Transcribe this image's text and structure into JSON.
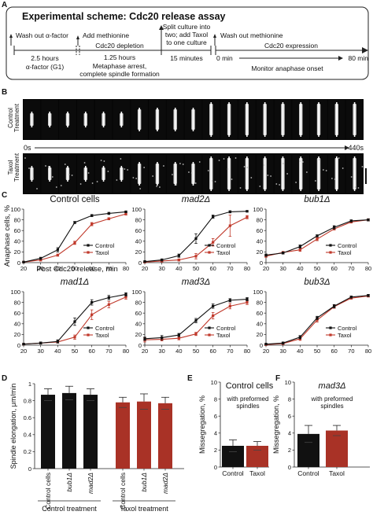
{
  "panel_labels": {
    "A": "A",
    "B": "B",
    "C": "C",
    "D": "D",
    "E": "E",
    "F": "F"
  },
  "scheme": {
    "title": "Experimental scheme: Cdc20 release assay",
    "steps": [
      {
        "top": "Wash out α-factor",
        "mid": "2.5 hours",
        "bot": "α-factor (G1)"
      },
      {
        "top": "Add methionine",
        "mid2": "Cdc20 depletion",
        "mid": "1.25 hours",
        "bot": "Metaphase arrest,",
        "bot2": "complete spindle formation"
      },
      {
        "top": "Split culture into",
        "top2": "two; add Taxol",
        "top3": "to one culture",
        "mid": "15 minutes"
      },
      {
        "top": "Wash out methionine",
        "mid": "Cdc20 expression",
        "start": "0 min",
        "end": "80 min",
        "bot": "Monitor anaphase onset"
      }
    ]
  },
  "timelapse": {
    "row1_label_a": "Control",
    "row1_label_b": "Treatment",
    "row2_label_a": "Taxol",
    "row2_label_b": "Treatment",
    "t_start": "0s",
    "t_end": "440s",
    "frames": [
      {
        "type": "short"
      },
      {
        "type": "short"
      },
      {
        "type": "short"
      },
      {
        "type": "short"
      },
      {
        "type": "short"
      },
      {
        "type": "short"
      },
      {
        "type": "mid"
      },
      {
        "type": "mid"
      },
      {
        "type": "mid"
      },
      {
        "type": "mid"
      },
      {
        "type": "long"
      },
      {
        "type": "long"
      },
      {
        "type": "long"
      },
      {
        "type": "long"
      },
      {
        "type": "long"
      },
      {
        "type": "long"
      },
      {
        "type": "long"
      },
      {
        "type": "long"
      },
      {
        "type": "long"
      }
    ]
  },
  "line_axis": {
    "ylabel": "Anaphase cells, %",
    "xlabel": "Post Cdc20 release, min",
    "xticks": [
      20,
      30,
      40,
      50,
      60,
      70,
      80
    ],
    "yticks": [
      0,
      20,
      40,
      60,
      80,
      100
    ]
  },
  "chart_data": [
    {
      "type": "line",
      "title": "Control cells",
      "italic": false,
      "x": [
        20,
        30,
        40,
        50,
        60,
        70,
        80
      ],
      "ylim": [
        0,
        100
      ],
      "series": [
        {
          "name": "Control",
          "color": "#111111",
          "values": [
            1,
            8,
            24,
            75,
            88,
            92,
            95
          ],
          "err": [
            1,
            2,
            4,
            2,
            2,
            2,
            1
          ]
        },
        {
          "name": "Taxol",
          "color": "#c0392b",
          "values": [
            1,
            5,
            14,
            37,
            72,
            82,
            91
          ],
          "err": [
            1,
            2,
            2,
            3,
            3,
            2,
            2
          ]
        }
      ],
      "legend": "bottom-right"
    },
    {
      "type": "line",
      "title": "mad2Δ",
      "italic": true,
      "x": [
        20,
        30,
        40,
        50,
        60,
        70,
        80
      ],
      "ylim": [
        0,
        100
      ],
      "series": [
        {
          "name": "Control",
          "color": "#111111",
          "values": [
            2,
            5,
            13,
            45,
            86,
            95,
            96
          ],
          "err": [
            1,
            2,
            3,
            9,
            3,
            2,
            1
          ]
        },
        {
          "name": "Taxol",
          "color": "#c0392b",
          "values": [
            1,
            3,
            5,
            12,
            38,
            69,
            85
          ],
          "err": [
            1,
            2,
            2,
            5,
            7,
            20,
            3
          ]
        }
      ],
      "legend": "bottom-right"
    },
    {
      "type": "line",
      "title": "bub1Δ",
      "italic": true,
      "x": [
        20,
        30,
        40,
        50,
        60,
        70,
        80
      ],
      "ylim": [
        0,
        100
      ],
      "series": [
        {
          "name": "Control",
          "color": "#111111",
          "values": [
            14,
            18,
            30,
            50,
            66,
            78,
            80
          ],
          "err": [
            2,
            2,
            3,
            2,
            3,
            2,
            2
          ]
        },
        {
          "name": "Taxol",
          "color": "#c0392b",
          "values": [
            12,
            19,
            24,
            44,
            63,
            76,
            80
          ],
          "err": [
            2,
            2,
            3,
            3,
            2,
            2,
            2
          ]
        }
      ],
      "legend": "bottom-right"
    },
    {
      "type": "line",
      "title": "mad1Δ",
      "italic": true,
      "x": [
        20,
        30,
        40,
        50,
        60,
        70,
        80
      ],
      "ylim": [
        0,
        100
      ],
      "series": [
        {
          "name": "Control",
          "color": "#111111",
          "values": [
            2,
            4,
            7,
            44,
            80,
            89,
            95
          ],
          "err": [
            1,
            2,
            3,
            7,
            5,
            4,
            3
          ]
        },
        {
          "name": "Taxol",
          "color": "#c0392b",
          "values": [
            2,
            4,
            6,
            15,
            57,
            76,
            90
          ],
          "err": [
            1,
            2,
            2,
            4,
            9,
            6,
            4
          ]
        }
      ],
      "legend": "bottom-right"
    },
    {
      "type": "line",
      "title": "mad3Δ",
      "italic": true,
      "x": [
        20,
        30,
        40,
        50,
        60,
        70,
        80
      ],
      "ylim": [
        0,
        100
      ],
      "series": [
        {
          "name": "Control",
          "color": "#111111",
          "values": [
            12,
            14,
            19,
            46,
            73,
            84,
            86
          ],
          "err": [
            3,
            4,
            3,
            4,
            4,
            3,
            3
          ]
        },
        {
          "name": "Taxol",
          "color": "#c0392b",
          "values": [
            10,
            11,
            13,
            21,
            55,
            73,
            80
          ],
          "err": [
            4,
            3,
            3,
            3,
            6,
            5,
            4
          ]
        }
      ],
      "legend": "bottom-right"
    },
    {
      "type": "line",
      "title": "bub3Δ",
      "italic": true,
      "x": [
        20,
        30,
        40,
        50,
        60,
        70,
        80
      ],
      "ylim": [
        0,
        100
      ],
      "series": [
        {
          "name": "Control",
          "color": "#111111",
          "values": [
            2,
            4,
            15,
            51,
            73,
            90,
            93
          ],
          "err": [
            1,
            2,
            3,
            3,
            3,
            2,
            2
          ]
        },
        {
          "name": "Taxol",
          "color": "#c0392b",
          "values": [
            1,
            3,
            12,
            47,
            72,
            88,
            92
          ],
          "err": [
            1,
            2,
            3,
            4,
            3,
            2,
            2
          ]
        }
      ],
      "legend": "bottom-right"
    },
    {
      "type": "bar",
      "title": "",
      "ylabel": "Spindle elongation, μm/min",
      "ylim": [
        0,
        1.0
      ],
      "yticks": [
        0,
        0.2,
        0.4,
        0.6,
        0.8,
        1.0
      ],
      "categories": [
        "Control cells",
        "bub1Δ",
        "mad2Δ",
        "Control cells",
        "bub1Δ",
        "mad2Δ"
      ],
      "italic_cats": [
        false,
        true,
        true,
        false,
        true,
        true
      ],
      "values": [
        0.87,
        0.89,
        0.87,
        0.78,
        0.79,
        0.77
      ],
      "err": [
        0.07,
        0.08,
        0.07,
        0.06,
        0.09,
        0.07
      ],
      "colors": [
        "#111111",
        "#111111",
        "#111111",
        "#a93226",
        "#a93226",
        "#a93226"
      ],
      "groups": [
        {
          "label": "Control treatment",
          "from": 0,
          "to": 2
        },
        {
          "label": "Taxol treatment",
          "from": 3,
          "to": 5
        }
      ]
    },
    {
      "type": "bar",
      "title": "Control cells",
      "italic": false,
      "subtitle_a": "with preformed",
      "subtitle_b": "spindles",
      "ylabel": "Missegregation, %",
      "ylim": [
        0,
        10
      ],
      "yticks": [
        0,
        2,
        4,
        6,
        8,
        10
      ],
      "categories": [
        "Control",
        "Taxol"
      ],
      "values": [
        2.5,
        2.5
      ],
      "err": [
        0.7,
        0.5
      ],
      "colors": [
        "#111111",
        "#a93226"
      ]
    },
    {
      "type": "bar",
      "title": "mad3Δ",
      "italic": true,
      "subtitle_a": "with preformed",
      "subtitle_b": "spindles",
      "ylabel": "Missegregation, %",
      "ylim": [
        0,
        10
      ],
      "yticks": [
        0,
        2,
        4,
        6,
        8,
        10
      ],
      "categories": [
        "Control",
        "Taxol"
      ],
      "values": [
        3.9,
        4.3
      ],
      "err": [
        1.0,
        0.6
      ],
      "colors": [
        "#111111",
        "#a93226"
      ]
    }
  ]
}
